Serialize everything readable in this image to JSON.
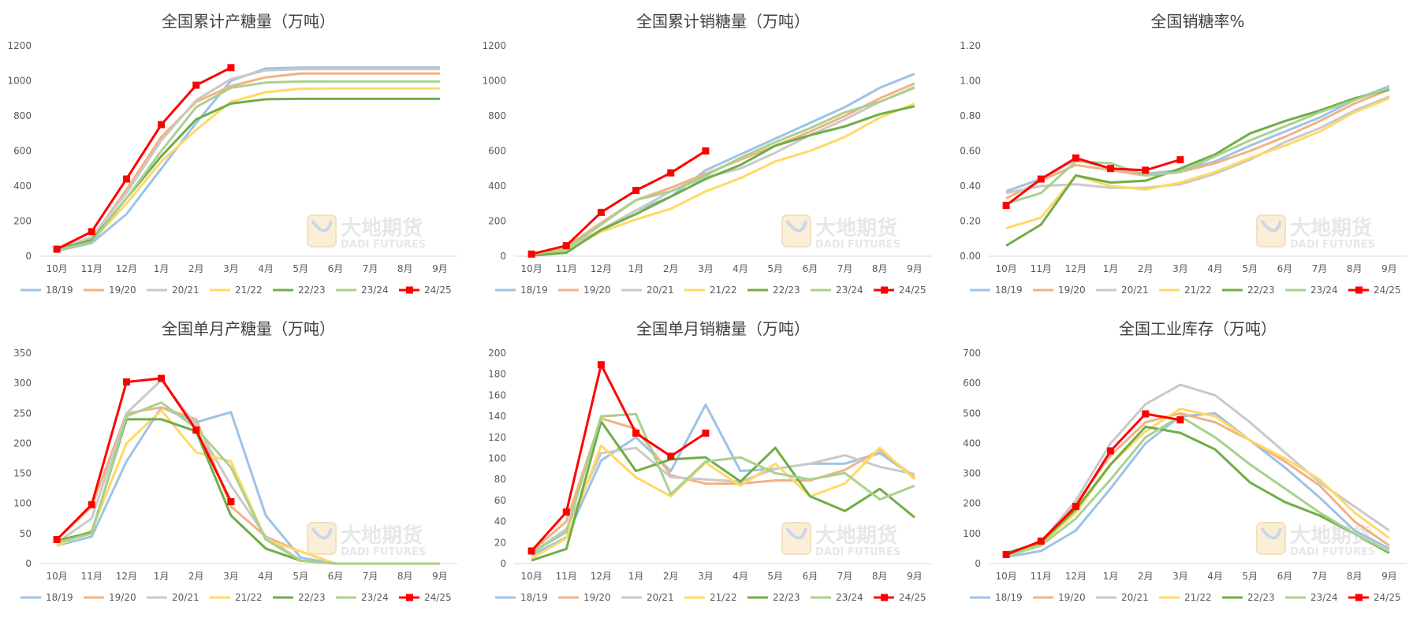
{
  "watermark": {
    "cn": "大地期货",
    "en": "DADI FUTURES"
  },
  "charts": [
    {
      "type": "line",
      "title": "全国累计产糖量（万吨）",
      "categories": [
        "10月",
        "11月",
        "12月",
        "1月",
        "2月",
        "3月",
        "4月",
        "5月",
        "6月",
        "7月",
        "8月",
        "9月"
      ],
      "ylim": [
        0,
        1200
      ],
      "yticks": [
        0,
        200,
        400,
        600,
        800,
        1000,
        1200
      ],
      "ytick_labels": [
        "0",
        "200",
        "400",
        "600",
        "800",
        "1000",
        "1200"
      ],
      "legend": "bottom",
      "series": [
        {
          "name": "18/19",
          "color": "#9DC3E6",
          "values": [
            30,
            75,
            240,
            500,
            760,
            1000,
            1070,
            1075,
            1076,
            1076,
            1076,
            1076
          ]
        },
        {
          "name": "19/20",
          "color": "#F4B183",
          "values": [
            40,
            100,
            380,
            680,
            880,
            970,
            1020,
            1042,
            1042,
            1042,
            1042,
            1042
          ]
        },
        {
          "name": "20/21",
          "color": "#C9C9C9",
          "values": [
            35,
            110,
            360,
            660,
            890,
            1010,
            1060,
            1066,
            1066,
            1066,
            1066,
            1066
          ]
        },
        {
          "name": "21/22",
          "color": "#FFD966",
          "values": [
            35,
            85,
            300,
            540,
            720,
            880,
            935,
            955,
            956,
            956,
            956,
            956
          ]
        },
        {
          "name": "22/23",
          "color": "#70AD47",
          "values": [
            40,
            90,
            330,
            570,
            780,
            870,
            895,
            897,
            897,
            897,
            897,
            897
          ]
        },
        {
          "name": "23/24",
          "color": "#A9D18E",
          "values": [
            35,
            80,
            330,
            600,
            850,
            960,
            990,
            996,
            996,
            996,
            996,
            996
          ]
        },
        {
          "name": "24/25",
          "color": "#FF0000",
          "marker": true,
          "values": [
            40,
            140,
            440,
            750,
            975,
            1075,
            null,
            null,
            null,
            null,
            null,
            null
          ]
        }
      ]
    },
    {
      "type": "line",
      "title": "全国累计销糖量（万吨）",
      "categories": [
        "10月",
        "11月",
        "12月",
        "1月",
        "2月",
        "3月",
        "4月",
        "5月",
        "6月",
        "7月",
        "8月",
        "9月"
      ],
      "ylim": [
        0,
        1200
      ],
      "yticks": [
        0,
        200,
        400,
        600,
        800,
        1000,
        1200
      ],
      "ytick_labels": [
        "0",
        "200",
        "400",
        "600",
        "800",
        "1000",
        "1200"
      ],
      "legend": "bottom",
      "series": [
        {
          "name": "18/19",
          "color": "#9DC3E6",
          "values": [
            10,
            35,
            150,
            260,
            340,
            490,
            580,
            670,
            760,
            850,
            960,
            1040
          ]
        },
        {
          "name": "19/20",
          "color": "#F4B183",
          "values": [
            12,
            55,
            190,
            320,
            390,
            470,
            550,
            630,
            710,
            800,
            900,
            985
          ]
        },
        {
          "name": "20/21",
          "color": "#C9C9C9",
          "values": [
            8,
            45,
            150,
            260,
            370,
            450,
            500,
            590,
            690,
            780,
            880,
            965
          ]
        },
        {
          "name": "21/22",
          "color": "#FFD966",
          "values": [
            5,
            30,
            140,
            210,
            270,
            370,
            445,
            540,
            600,
            680,
            790,
            870
          ]
        },
        {
          "name": "22/23",
          "color": "#70AD47",
          "values": [
            3,
            20,
            150,
            240,
            340,
            440,
            520,
            630,
            690,
            740,
            810,
            855
          ]
        },
        {
          "name": "23/24",
          "color": "#A9D18E",
          "values": [
            10,
            40,
            180,
            320,
            370,
            460,
            560,
            650,
            730,
            820,
            880,
            960
          ]
        },
        {
          "name": "24/25",
          "color": "#FF0000",
          "marker": true,
          "values": [
            12,
            60,
            250,
            375,
            475,
            600,
            null,
            null,
            null,
            null,
            null,
            null
          ]
        }
      ]
    },
    {
      "type": "line",
      "title": "全国销糖率%",
      "categories": [
        "10月",
        "11月",
        "12月",
        "1月",
        "2月",
        "3月",
        "4月",
        "5月",
        "6月",
        "7月",
        "8月",
        "9月"
      ],
      "ylim": [
        0,
        1.2
      ],
      "yticks": [
        0,
        0.2,
        0.4,
        0.6,
        0.8,
        1.0,
        1.2
      ],
      "ytick_labels": [
        "0.00",
        "0.20",
        "0.40",
        "0.60",
        "0.80",
        "1.00",
        "1.20"
      ],
      "legend": "bottom",
      "series": [
        {
          "name": "18/19",
          "color": "#9DC3E6",
          "values": [
            0.37,
            0.44,
            0.55,
            0.5,
            0.47,
            0.49,
            0.54,
            0.63,
            0.71,
            0.79,
            0.89,
            0.97
          ]
        },
        {
          "name": "19/20",
          "color": "#F4B183",
          "values": [
            0.33,
            0.43,
            0.52,
            0.49,
            0.46,
            0.48,
            0.53,
            0.6,
            0.68,
            0.77,
            0.87,
            0.95
          ]
        },
        {
          "name": "20/21",
          "color": "#C9C9C9",
          "values": [
            0.36,
            0.4,
            0.41,
            0.39,
            0.39,
            0.41,
            0.47,
            0.55,
            0.65,
            0.73,
            0.83,
            0.91
          ]
        },
        {
          "name": "21/22",
          "color": "#FFD966",
          "values": [
            0.16,
            0.22,
            0.46,
            0.4,
            0.38,
            0.42,
            0.48,
            0.56,
            0.63,
            0.71,
            0.82,
            0.9
          ]
        },
        {
          "name": "22/23",
          "color": "#70AD47",
          "values": [
            0.06,
            0.18,
            0.46,
            0.42,
            0.43,
            0.5,
            0.58,
            0.7,
            0.77,
            0.83,
            0.9,
            0.95
          ]
        },
        {
          "name": "23/24",
          "color": "#A9D18E",
          "values": [
            0.3,
            0.36,
            0.54,
            0.53,
            0.46,
            0.48,
            0.57,
            0.66,
            0.74,
            0.82,
            0.89,
            0.96
          ]
        },
        {
          "name": "24/25",
          "color": "#FF0000",
          "marker": true,
          "values": [
            0.29,
            0.44,
            0.56,
            0.5,
            0.49,
            0.55,
            null,
            null,
            null,
            null,
            null,
            null
          ]
        }
      ]
    },
    {
      "type": "line",
      "title": "全国单月产糖量（万吨）",
      "categories": [
        "10月",
        "11月",
        "12月",
        "1月",
        "2月",
        "3月",
        "4月",
        "5月",
        "6月",
        "7月",
        "8月",
        "9月"
      ],
      "ylim": [
        0,
        350
      ],
      "yticks": [
        0,
        50,
        100,
        150,
        200,
        250,
        300,
        350
      ],
      "ytick_labels": [
        "0",
        "50",
        "100",
        "150",
        "200",
        "250",
        "300",
        "350"
      ],
      "legend": "bottom",
      "series": [
        {
          "name": "18/19",
          "color": "#9DC3E6",
          "values": [
            30,
            45,
            170,
            260,
            235,
            252,
            80,
            10,
            0,
            0,
            0,
            0
          ]
        },
        {
          "name": "19/20",
          "color": "#F4B183",
          "values": [
            40,
            95,
            250,
            260,
            240,
            95,
            45,
            20,
            0,
            0,
            0,
            0
          ]
        },
        {
          "name": "20/21",
          "color": "#C9C9C9",
          "values": [
            35,
            75,
            250,
            305,
            230,
            130,
            45,
            5,
            0,
            0,
            0,
            0
          ]
        },
        {
          "name": "21/22",
          "color": "#FFD966",
          "values": [
            30,
            55,
            200,
            255,
            185,
            170,
            40,
            20,
            0,
            0,
            0,
            0
          ]
        },
        {
          "name": "22/23",
          "color": "#70AD47",
          "values": [
            38,
            52,
            240,
            240,
            220,
            80,
            25,
            5,
            0,
            0,
            0,
            0
          ]
        },
        {
          "name": "23/24",
          "color": "#A9D18E",
          "values": [
            35,
            50,
            245,
            268,
            225,
            160,
            40,
            5,
            0,
            0,
            0,
            0
          ]
        },
        {
          "name": "24/25",
          "color": "#FF0000",
          "marker": true,
          "values": [
            40,
            98,
            302,
            308,
            222,
            103,
            null,
            null,
            null,
            null,
            null,
            null
          ]
        }
      ]
    },
    {
      "type": "line",
      "title": "全国单月销糖量（万吨）",
      "categories": [
        "10月",
        "11月",
        "12月",
        "1月",
        "2月",
        "3月",
        "4月",
        "5月",
        "6月",
        "7月",
        "8月",
        "9月"
      ],
      "ylim": [
        0,
        200
      ],
      "yticks": [
        0,
        20,
        40,
        60,
        80,
        100,
        120,
        140,
        160,
        180,
        200
      ],
      "ytick_labels": [
        "0",
        "20",
        "40",
        "60",
        "80",
        "100",
        "120",
        "140",
        "160",
        "180",
        "200"
      ],
      "legend": "bottom",
      "series": [
        {
          "name": "18/19",
          "color": "#9DC3E6",
          "values": [
            8,
            25,
            98,
            120,
            88,
            151,
            88,
            90,
            95,
            95,
            105,
            82
          ]
        },
        {
          "name": "19/20",
          "color": "#F4B183",
          "values": [
            12,
            40,
            138,
            128,
            84,
            76,
            76,
            79,
            79,
            89,
            108,
            82
          ]
        },
        {
          "name": "20/21",
          "color": "#C9C9C9",
          "values": [
            10,
            33,
            105,
            110,
            82,
            80,
            78,
            90,
            95,
            103,
            92,
            85
          ]
        },
        {
          "name": "21/22",
          "color": "#FFD966",
          "values": [
            5,
            24,
            112,
            82,
            64,
            96,
            74,
            95,
            64,
            76,
            110,
            80
          ]
        },
        {
          "name": "22/23",
          "color": "#70AD47",
          "values": [
            3,
            14,
            135,
            88,
            99,
            101,
            78,
            110,
            64,
            50,
            71,
            44
          ]
        },
        {
          "name": "23/24",
          "color": "#A9D18E",
          "values": [
            10,
            30,
            140,
            142,
            66,
            97,
            101,
            86,
            80,
            86,
            61,
            74
          ]
        },
        {
          "name": "24/25",
          "color": "#FF0000",
          "marker": true,
          "values": [
            12,
            49,
            189,
            124,
            102,
            124,
            null,
            null,
            null,
            null,
            null,
            null
          ]
        }
      ]
    },
    {
      "type": "line",
      "title": "全国工业库存（万吨）",
      "categories": [
        "10月",
        "11月",
        "12月",
        "1月",
        "2月",
        "3月",
        "4月",
        "5月",
        "6月",
        "7月",
        "8月",
        "9月"
      ],
      "ylim": [
        0,
        700
      ],
      "yticks": [
        0,
        100,
        200,
        300,
        400,
        500,
        600,
        700
      ],
      "ytick_labels": [
        "0",
        "100",
        "200",
        "300",
        "400",
        "500",
        "600",
        "700"
      ],
      "legend": "bottom",
      "series": [
        {
          "name": "18/19",
          "color": "#9DC3E6",
          "values": [
            22,
            42,
            110,
            250,
            400,
            490,
            500,
            410,
            320,
            220,
            110,
            50
          ]
        },
        {
          "name": "19/20",
          "color": "#F4B183",
          "values": [
            28,
            70,
            200,
            360,
            470,
            500,
            470,
            410,
            340,
            260,
            140,
            60
          ]
        },
        {
          "name": "20/21",
          "color": "#C9C9C9",
          "values": [
            28,
            70,
            210,
            400,
            530,
            595,
            560,
            470,
            370,
            270,
            190,
            110
          ]
        },
        {
          "name": "21/22",
          "color": "#FFD966",
          "values": [
            30,
            65,
            170,
            330,
            440,
            515,
            490,
            410,
            350,
            280,
            170,
            85
          ]
        },
        {
          "name": "22/23",
          "color": "#70AD47",
          "values": [
            35,
            70,
            180,
            330,
            455,
            435,
            380,
            270,
            205,
            160,
            100,
            35
          ]
        },
        {
          "name": "23/24",
          "color": "#A9D18E",
          "values": [
            25,
            60,
            150,
            280,
            420,
            490,
            420,
            330,
            250,
            170,
            100,
            40
          ]
        },
        {
          "name": "24/25",
          "color": "#FF0000",
          "marker": true,
          "values": [
            30,
            75,
            190,
            375,
            498,
            478,
            null,
            null,
            null,
            null,
            null,
            null
          ]
        }
      ]
    }
  ]
}
